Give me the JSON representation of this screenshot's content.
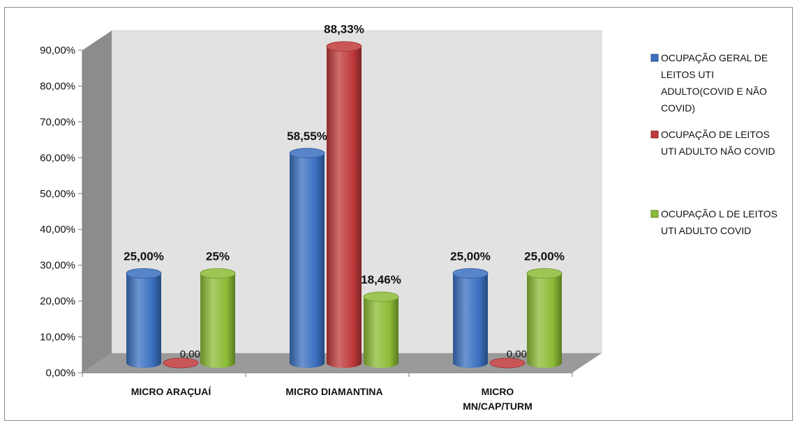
{
  "chart_data": {
    "type": "bar",
    "style": "3d-cylinder",
    "categories": [
      "MICRO ARAÇUAÍ",
      "MICRO DIAMANTINA",
      "MICRO MN/CAP/TURM"
    ],
    "series": [
      {
        "name": "OCUPAÇÃO GERAL DE LEITOS UTI ADULTO(COVID E NÃO COVID)",
        "color": "#3b70c0",
        "values": [
          25.0,
          58.55,
          25.0
        ],
        "labels": [
          "25,00%",
          "58,55%",
          "25,00%"
        ]
      },
      {
        "name": "OCUPAÇÃO DE LEITOS UTI ADULTO NÃO COVID",
        "color": "#c0393b",
        "values": [
          0.0,
          88.33,
          0.0
        ],
        "labels": [
          "0,00%",
          "88,33%",
          "0,00%"
        ]
      },
      {
        "name": "OCUPAÇÃO L DE LEITOS UTI ADULTO COVID",
        "color": "#8cbb36",
        "values": [
          25.0,
          18.46,
          25.0
        ],
        "labels": [
          "25%",
          "18,46%",
          "25,00%"
        ]
      }
    ],
    "yticks": [
      "0,00%",
      "10,00%",
      "20,00%",
      "30,00%",
      "40,00%",
      "50,00%",
      "60,00%",
      "70,00%",
      "80,00%",
      "90,00%"
    ],
    "ylim": [
      0,
      90
    ],
    "legend_position": "right",
    "grid": false,
    "title": "",
    "xlabel": "",
    "ylabel": ""
  }
}
